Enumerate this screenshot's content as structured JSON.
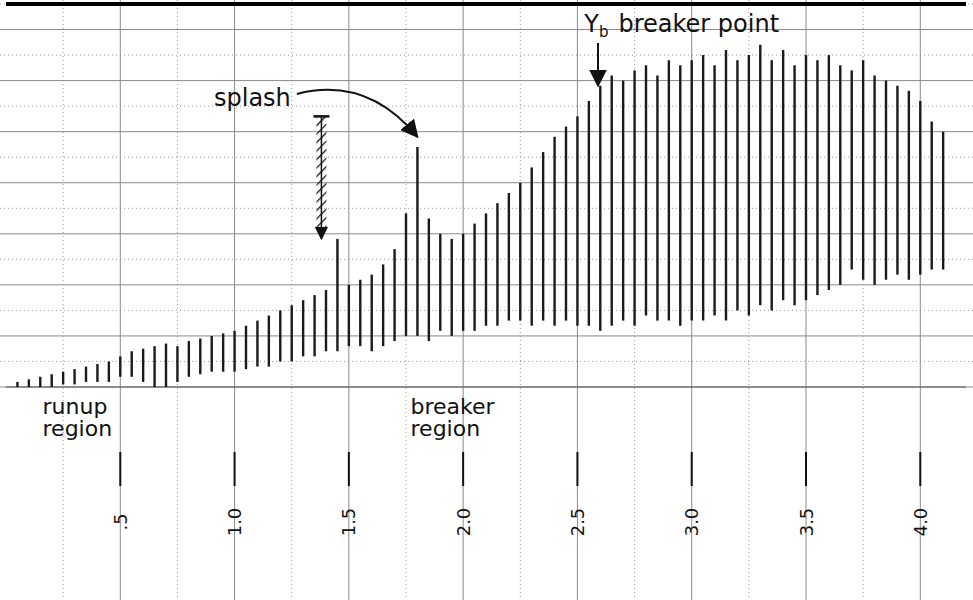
{
  "chart_data": {
    "type": "range",
    "x": [
      0.05,
      0.1,
      0.15,
      0.2,
      0.25,
      0.3,
      0.35,
      0.4,
      0.45,
      0.5,
      0.55,
      0.6,
      0.65,
      0.7,
      0.75,
      0.8,
      0.85,
      0.9,
      0.95,
      1.0,
      1.05,
      1.1,
      1.15,
      1.2,
      1.25,
      1.3,
      1.35,
      1.4,
      1.45,
      1.5,
      1.55,
      1.6,
      1.65,
      1.7,
      1.75,
      1.8,
      1.85,
      1.9,
      1.95,
      2.0,
      2.05,
      2.1,
      2.15,
      2.2,
      2.25,
      2.3,
      2.35,
      2.4,
      2.45,
      2.5,
      2.55,
      2.6,
      2.65,
      2.7,
      2.75,
      2.8,
      2.85,
      2.9,
      2.95,
      3.0,
      3.05,
      3.1,
      3.15,
      3.2,
      3.25,
      3.3,
      3.35,
      3.4,
      3.45,
      3.5,
      3.55,
      3.6,
      3.65,
      3.7,
      3.75,
      3.8,
      3.85,
      3.9,
      3.95,
      4.0,
      4.05,
      4.1
    ],
    "series": [
      {
        "color": "#1a1a1a",
        "values": [
          0.1,
          0.15,
          0.2,
          0.25,
          0.3,
          0.35,
          0.4,
          0.45,
          0.5,
          0.6,
          0.7,
          0.75,
          0.8,
          0.85,
          0.8,
          0.9,
          0.95,
          1.0,
          1.05,
          1.1,
          1.2,
          1.3,
          1.4,
          1.5,
          1.6,
          1.7,
          1.8,
          1.9,
          2.9,
          2.0,
          2.1,
          2.2,
          2.4,
          2.7,
          3.4,
          4.7,
          3.3,
          3.0,
          2.9,
          3.0,
          3.2,
          3.4,
          3.6,
          3.8,
          4.0,
          4.3,
          4.6,
          4.9,
          5.1,
          5.3,
          5.6,
          5.9,
          6.1,
          6.0,
          6.2,
          6.3,
          6.1,
          6.4,
          6.3,
          6.4,
          6.5,
          6.3,
          6.6,
          6.4,
          6.5,
          6.7,
          6.4,
          6.6,
          6.3,
          6.5,
          6.4,
          6.5,
          6.3,
          6.2,
          6.4,
          6.1,
          6.0,
          5.9,
          5.8,
          5.6,
          5.2,
          5.0
        ]
      },
      {
        "color": "#1a1a1a",
        "values": [
          0,
          0,
          0,
          0,
          0.05,
          0.05,
          0.1,
          0.1,
          0.1,
          0.2,
          0.2,
          0.1,
          0,
          0,
          0.1,
          0.2,
          0.25,
          0.3,
          0.3,
          0.3,
          0.35,
          0.4,
          0.4,
          0.5,
          0.5,
          0.6,
          0.6,
          0.7,
          0.7,
          0.8,
          0.8,
          0.7,
          0.8,
          0.9,
          1.0,
          1.0,
          0.9,
          1.1,
          1.0,
          1.1,
          1.1,
          1.2,
          1.2,
          1.3,
          1.3,
          1.2,
          1.3,
          1.2,
          1.3,
          1.2,
          1.2,
          1.1,
          1.2,
          1.3,
          1.2,
          1.4,
          1.3,
          1.3,
          1.2,
          1.3,
          1.3,
          1.4,
          1.3,
          1.5,
          1.4,
          1.6,
          1.5,
          1.7,
          1.6,
          1.7,
          1.8,
          1.9,
          2.0,
          2.3,
          2.1,
          2.0,
          2.1,
          2.2,
          2.1,
          2.2,
          2.3,
          2.3
        ]
      }
    ],
    "xlim": [
      0,
      4.2
    ],
    "ylim": [
      0,
      7.5
    ],
    "xticks": [
      {
        "value": 0.5,
        "label": ".5"
      },
      {
        "value": 1.0,
        "label": "1.0"
      },
      {
        "value": 1.5,
        "label": "1.5"
      },
      {
        "value": 2.0,
        "label": "2.0"
      },
      {
        "value": 2.5,
        "label": "2.5"
      },
      {
        "value": 3.0,
        "label": "3.0"
      },
      {
        "value": 3.5,
        "label": "3.5"
      },
      {
        "value": 4.0,
        "label": "4.0"
      }
    ],
    "yticks": [
      0,
      1,
      2,
      3,
      4,
      5,
      6,
      7
    ],
    "grid": true,
    "tick_labels": "x",
    "annotations": [
      {
        "symbol": "Y",
        "subscript": "b",
        "text": "breaker point",
        "x": 2.53,
        "y": 6.95,
        "arrow_x": 2.59,
        "arrow_y": 5.9
      },
      {
        "text": "splash",
        "x": 0.91,
        "y": 5.5,
        "arrow_x": 1.8,
        "arrow_y": 4.9
      }
    ],
    "hatched_marker": {
      "x": 1.38,
      "y_low": 2.9,
      "y_high": 5.3
    },
    "regions": [
      {
        "text": "runup region",
        "x": 0.16
      },
      {
        "text": "breaker region",
        "x": 1.77
      }
    ]
  }
}
